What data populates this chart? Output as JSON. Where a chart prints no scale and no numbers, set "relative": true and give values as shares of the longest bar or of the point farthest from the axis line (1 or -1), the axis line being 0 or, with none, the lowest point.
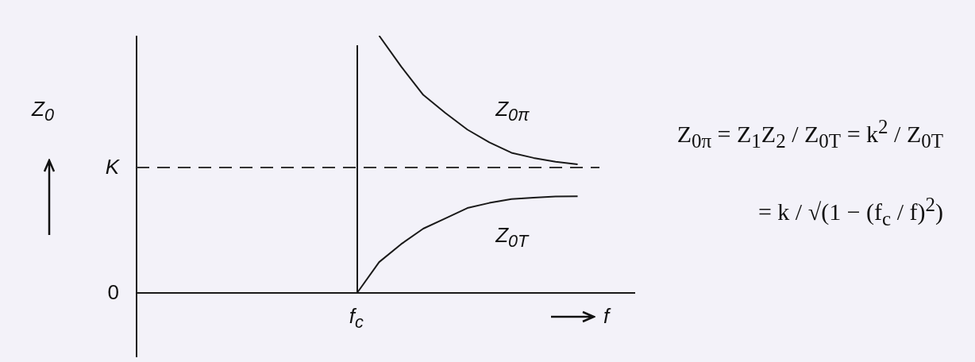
{
  "chart_data": {
    "type": "line",
    "relative": true,
    "xlabel": "f",
    "ylabel": "Z$_{0}$",
    "categories": [
      null,
      null,
      null,
      null,
      null,
      null,
      null,
      null,
      null,
      null,
      null,
      null,
      null,
      null,
      null,
      null,
      null,
      null,
      null,
      null,
      null,
      null,
      null,
      null
    ],
    "series": [
      {
        "name": "Z$_{0π}$",
        "color": "#1a1a1a",
        "values": [
          null,
          null,
          null,
          null,
          null,
          null,
          null,
          null,
          null,
          null,
          null,
          1,
          0.88,
          0.77,
          0.7,
          0.635,
          0.585,
          0.545,
          0.525,
          0.51,
          0.5,
          null,
          null,
          null
        ]
      },
      {
        "name": "Z$_{0T}$",
        "color": "#1a1a1a",
        "values": [
          null,
          null,
          null,
          null,
          null,
          null,
          null,
          null,
          null,
          null,
          0,
          0.12,
          0.19,
          0.25,
          0.29,
          0.33,
          0.35,
          0.365,
          0.37,
          0.375,
          0.376,
          null,
          null,
          null
        ]
      }
    ],
    "ref_lines": [
      {
        "axis": "y",
        "value": 0.488,
        "label": "K",
        "line_style": "dashed",
        "color": "#333333"
      }
    ],
    "annotations": [
      "0",
      "f$_{c}$",
      "Z$_{0π}$ = Z$_{1}$Z$_{2}$ / Z$_{0T}$ = k$^{2}$ / Z$_{0T}$",
      "= k / √(1 − (f$_{c}$ / f)$^{2}$)"
    ]
  }
}
